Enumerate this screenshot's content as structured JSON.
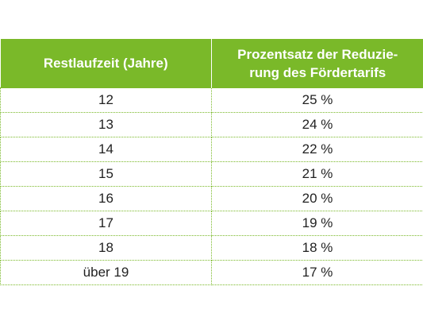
{
  "table": {
    "header": {
      "col1": "Restlaufzeit (Jahre)",
      "col2_line1": "Prozentsatz der Reduzie-",
      "col2_line2": "rung des Fördertarifs"
    },
    "rows": [
      {
        "years": "12",
        "percent": "25 %"
      },
      {
        "years": "13",
        "percent": "24 %"
      },
      {
        "years": "14",
        "percent": "22 %"
      },
      {
        "years": "15",
        "percent": "21 %"
      },
      {
        "years": "16",
        "percent": "20 %"
      },
      {
        "years": "17",
        "percent": "19 %"
      },
      {
        "years": "18",
        "percent": "18 %"
      },
      {
        "years": "über 19",
        "percent": "17 %"
      }
    ]
  },
  "colors": {
    "header_background": "#7ab929",
    "header_text": "#ffffff",
    "border": "#7ab929"
  }
}
